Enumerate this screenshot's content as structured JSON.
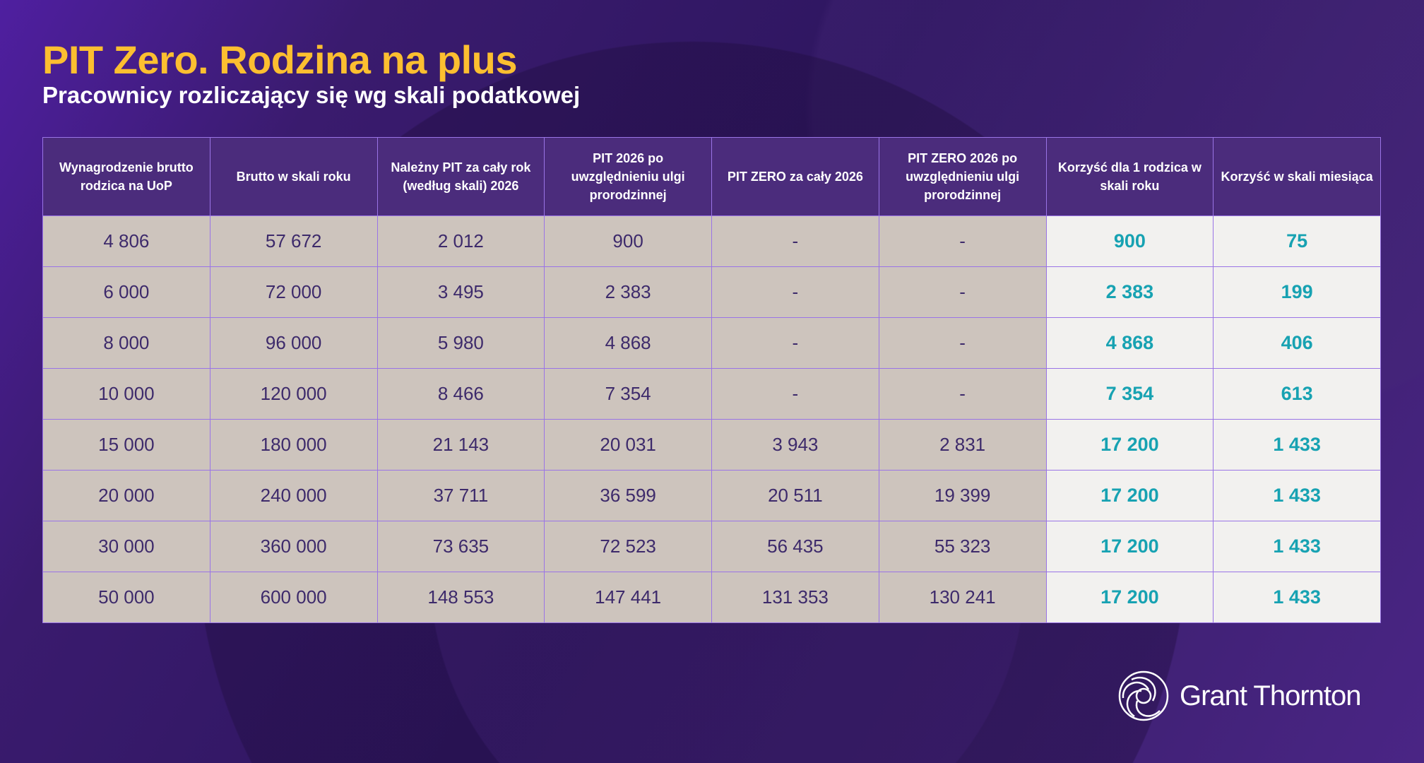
{
  "title": "PIT Zero. Rodzina na plus",
  "subtitle": "Pracownicy rozliczający się wg skali podatkowej",
  "colors": {
    "title": "#fcbf30",
    "accent_teal": "#17a2b2",
    "header_bg": "#4b2c7c",
    "cell_bg": "#cdc4bd",
    "highlight_bg": "#f2f1ef"
  },
  "table": {
    "headers": [
      "Wynagrodzenie brutto rodzica na UoP",
      "Brutto w skali roku",
      "Należny PIT za cały rok (według skali) 2026",
      "PIT 2026 po uwzględnieniu ulgi prorodzinnej",
      "PIT ZERO za cały 2026",
      "PIT ZERO 2026 po uwzględnieniu ulgi prorodzinnej",
      "Korzyść dla 1 rodzica w skali roku",
      "Korzyść w skali miesiąca"
    ],
    "rows": [
      [
        "4 806",
        "57 672",
        "2 012",
        "900",
        "-",
        "-",
        "900",
        "75"
      ],
      [
        "6 000",
        "72 000",
        "3 495",
        "2 383",
        "-",
        "-",
        "2 383",
        "199"
      ],
      [
        "8 000",
        "96 000",
        "5 980",
        "4 868",
        "-",
        "-",
        "4 868",
        "406"
      ],
      [
        "10 000",
        "120 000",
        "8 466",
        "7 354",
        "-",
        "-",
        "7 354",
        "613"
      ],
      [
        "15 000",
        "180 000",
        "21 143",
        "20 031",
        "3 943",
        "2 831",
        "17 200",
        "1 433"
      ],
      [
        "20 000",
        "240 000",
        "37 711",
        "36 599",
        "20 511",
        "19 399",
        "17 200",
        "1 433"
      ],
      [
        "30 000",
        "360 000",
        "73 635",
        "72 523",
        "56 435",
        "55 323",
        "17 200",
        "1 433"
      ],
      [
        "50 000",
        "600 000",
        "148 553",
        "147 441",
        "131 353",
        "130 241",
        "17 200",
        "1 433"
      ]
    ]
  },
  "logo": {
    "text": "Grant Thornton",
    "icon": "grant-thornton-swirl-icon"
  }
}
